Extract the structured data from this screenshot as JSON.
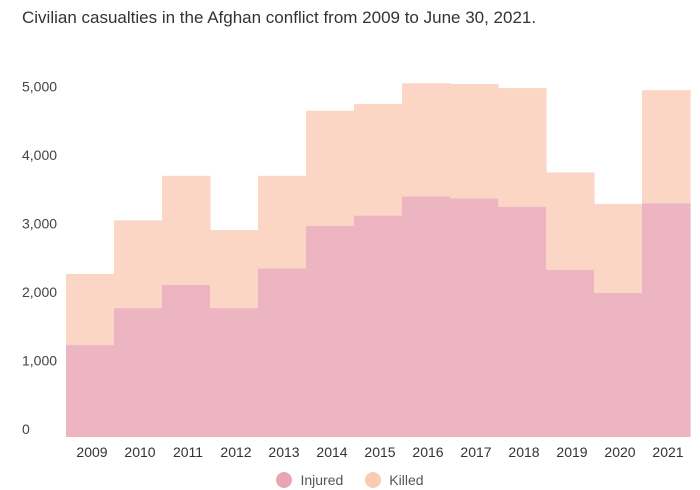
{
  "chart_data": {
    "type": "area",
    "stacked": true,
    "title": "Civilian casualties in the Afghan conflict from 2009 to June 30, 2021.",
    "categories": [
      "2009",
      "2010",
      "2011",
      "2012",
      "2013",
      "2014",
      "2015",
      "2016",
      "2017",
      "2018",
      "2019",
      "2020",
      "2021"
    ],
    "series": [
      {
        "name": "Injured",
        "color": "#ecb5c1",
        "values": [
          1340,
          1880,
          2220,
          1880,
          2460,
          3080,
          3230,
          3510,
          3480,
          3360,
          2440,
          2100,
          3410
        ]
      },
      {
        "name": "Killed",
        "color": "#fbd6c4",
        "values": [
          1040,
          1280,
          1590,
          1140,
          1350,
          1680,
          1630,
          1650,
          1670,
          1730,
          1420,
          1300,
          1650
        ]
      }
    ],
    "yticks": [
      "0",
      "1,000",
      "2,000",
      "3,000",
      "4,000",
      "5,000"
    ],
    "ylim": [
      0,
      5500
    ],
    "xlabel": "",
    "ylabel": "",
    "legend_position": "bottom-center"
  }
}
